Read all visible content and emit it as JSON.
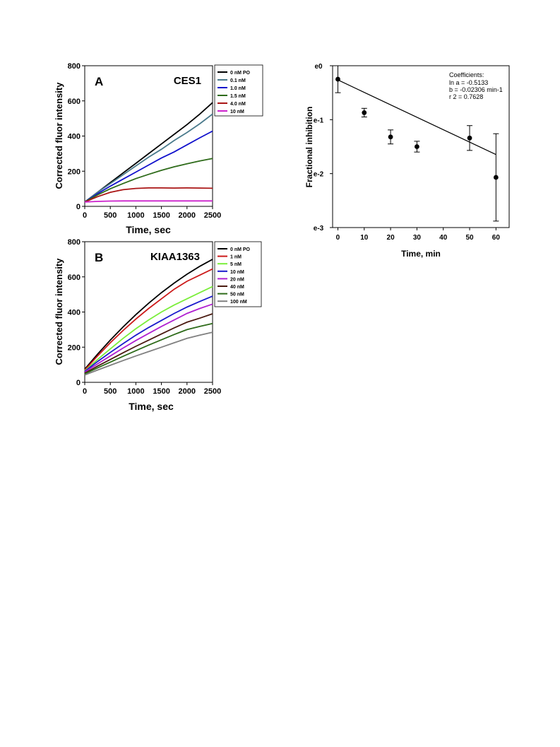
{
  "chart_data": [
    {
      "type": "line",
      "panel_label": "A",
      "title": "CES1",
      "xlabel": "Time, sec",
      "ylabel": "Corrected fluor intensity",
      "xlim": [
        0,
        2500
      ],
      "ylim": [
        0,
        800
      ],
      "x_ticks": [
        0,
        500,
        1000,
        1500,
        2000,
        2500
      ],
      "y_ticks": [
        0,
        200,
        400,
        600,
        800
      ],
      "legend_position": "top-right-outside",
      "x": [
        0,
        250,
        500,
        750,
        1000,
        1250,
        1500,
        1750,
        2000,
        2250,
        2500
      ],
      "series": [
        {
          "name": "0 nM PO",
          "color": "#000000",
          "values": [
            25,
            80,
            135,
            190,
            245,
            300,
            355,
            410,
            465,
            525,
            590
          ]
        },
        {
          "name": "0.1 nM",
          "color": "#4a7a8c",
          "values": [
            25,
            80,
            130,
            180,
            230,
            280,
            325,
            375,
            420,
            470,
            525
          ]
        },
        {
          "name": "1.0 nM",
          "color": "#1010cc",
          "values": [
            25,
            72,
            115,
            155,
            195,
            235,
            275,
            310,
            350,
            390,
            428
          ]
        },
        {
          "name": "1.5 nM",
          "color": "#2e6b1a",
          "values": [
            25,
            65,
            100,
            130,
            158,
            182,
            205,
            225,
            242,
            258,
            272
          ]
        },
        {
          "name": "4.0 nM",
          "color": "#aa1515",
          "values": [
            25,
            55,
            80,
            95,
            102,
            105,
            105,
            104,
            105,
            104,
            103
          ]
        },
        {
          "name": "10 nM",
          "color": "#cc22cc",
          "values": [
            25,
            28,
            30,
            31,
            31,
            31,
            31,
            31,
            31,
            31,
            31
          ]
        }
      ]
    },
    {
      "type": "line",
      "panel_label": "B",
      "title": "KIAA1363",
      "xlabel": "Time, sec",
      "ylabel": "Corrected fluor intensity",
      "xlim": [
        0,
        2500
      ],
      "ylim": [
        0,
        800
      ],
      "x_ticks": [
        0,
        500,
        1000,
        1500,
        2000,
        2500
      ],
      "y_ticks": [
        0,
        200,
        400,
        600,
        800
      ],
      "legend_position": "top-right-outside",
      "x": [
        0,
        250,
        500,
        750,
        1000,
        1250,
        1500,
        1750,
        2000,
        2250,
        2500
      ],
      "series": [
        {
          "name": "0 nM PO",
          "color": "#000000",
          "values": [
            75,
            160,
            240,
            315,
            385,
            450,
            510,
            565,
            615,
            660,
            700
          ]
        },
        {
          "name": "1 nM",
          "color": "#cc1a1a",
          "values": [
            70,
            150,
            225,
            295,
            360,
            420,
            475,
            530,
            575,
            610,
            645
          ]
        },
        {
          "name": "5 nM",
          "color": "#7aee3a",
          "values": [
            65,
            130,
            190,
            250,
            305,
            355,
            400,
            440,
            475,
            510,
            545
          ]
        },
        {
          "name": "10 nM",
          "color": "#1a1acc",
          "values": [
            62,
            118,
            170,
            220,
            268,
            312,
            352,
            392,
            428,
            460,
            490
          ]
        },
        {
          "name": "20 nM",
          "color": "#b020d0",
          "values": [
            58,
            105,
            150,
            195,
            238,
            278,
            318,
            355,
            392,
            420,
            445
          ]
        },
        {
          "name": "40 nM",
          "color": "#4a1a10",
          "values": [
            52,
            92,
            130,
            168,
            205,
            240,
            275,
            310,
            342,
            365,
            390
          ]
        },
        {
          "name": "50 nM",
          "color": "#2e6b1a",
          "values": [
            48,
            82,
            115,
            148,
            180,
            212,
            242,
            272,
            300,
            318,
            335
          ]
        },
        {
          "name": "100 nM",
          "color": "#808080",
          "values": [
            42,
            70,
            97,
            124,
            150,
            175,
            200,
            225,
            250,
            268,
            285
          ]
        }
      ]
    },
    {
      "type": "scatter",
      "xlabel": "Time, min",
      "ylabel": "Fractional inhibition",
      "y_scale": "log-base-e",
      "xlim": [
        -2,
        65
      ],
      "ylim_exponent": [
        -3,
        0
      ],
      "x_ticks": [
        0,
        10,
        20,
        30,
        40,
        50,
        60
      ],
      "y_ticks": [
        "e0",
        "e-1",
        "e-2",
        "e-3"
      ],
      "points": [
        {
          "x": 0,
          "ln_y": -0.25,
          "ln_err": 0.25
        },
        {
          "x": 10,
          "ln_y": -0.87,
          "ln_err": 0.08
        },
        {
          "x": 20,
          "ln_y": -1.32,
          "ln_err": 0.13
        },
        {
          "x": 30,
          "ln_y": -1.5,
          "ln_err": 0.1
        },
        {
          "x": 50,
          "ln_y": -1.34,
          "ln_err": 0.23
        },
        {
          "x": 60,
          "ln_y": -2.07,
          "ln_err": 0.81
        }
      ],
      "fit": {
        "ln_a": -0.5133,
        "b": -0.02306
      },
      "coefficients": {
        "heading": "Coefficients:",
        "lines": [
          "ln a =   -0.5133",
          "b =   -0.02306 min-1",
          "r 2   = 0.7628"
        ]
      }
    }
  ]
}
